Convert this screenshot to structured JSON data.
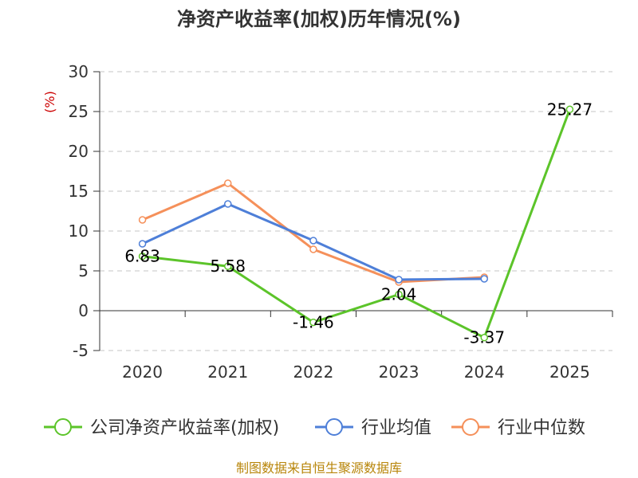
{
  "chart_data": {
    "type": "line",
    "title": "净资产收益率(加权)历年情况(%)",
    "ylabel": "(%)",
    "categories": [
      "2020",
      "2021",
      "2022",
      "2023",
      "2024",
      "2025"
    ],
    "ylim": [
      -5,
      30
    ],
    "yticks": [
      "30",
      "25",
      "20",
      "15",
      "10",
      "5",
      "0",
      "-5"
    ],
    "grid": true,
    "legend_position": "bottom",
    "series": [
      {
        "name": "公司净资产收益率(加权)",
        "color": "#5cc42a",
        "values": [
          6.83,
          5.58,
          -1.46,
          2.04,
          -3.37,
          25.27
        ],
        "labels": [
          "6.83",
          "5.58",
          "-1.46",
          "2.04",
          "-3.37",
          "25.27"
        ]
      },
      {
        "name": "行业均值",
        "color": "#4e7fd8",
        "values": [
          8.4,
          13.4,
          8.8,
          3.9,
          4.0,
          null
        ]
      },
      {
        "name": "行业中位数",
        "color": "#f5905a",
        "values": [
          11.4,
          16.0,
          7.7,
          3.6,
          4.2,
          null
        ]
      }
    ]
  },
  "source": "制图数据来自恒生聚源数据库"
}
